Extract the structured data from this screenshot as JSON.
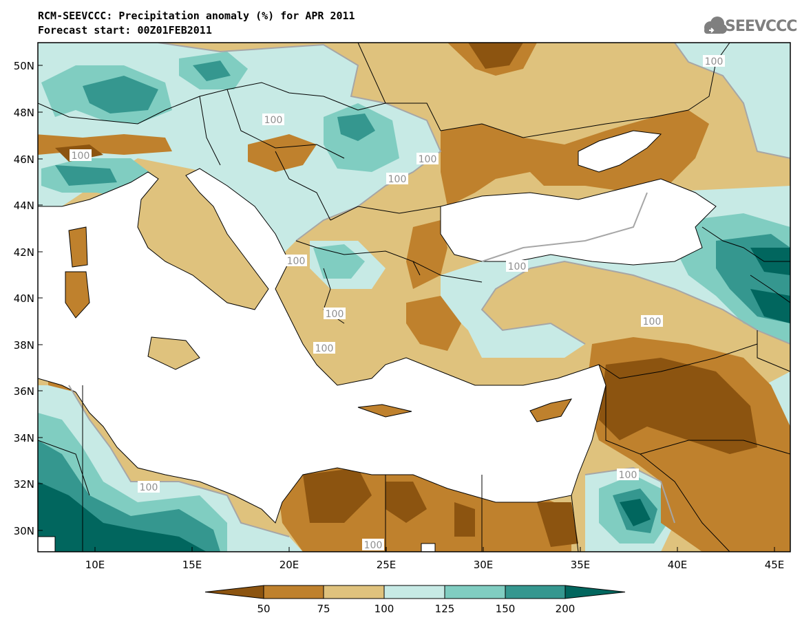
{
  "title_line1": "RCM-SEEVCCC: Precipitation anomaly (%) for APR 2011",
  "title_line2": "Forecast start: 00Z01FEB2011",
  "logo_text": "SEEVCCC",
  "lat_labels": [
    "50N",
    "48N",
    "46N",
    "44N",
    "42N",
    "40N",
    "38N",
    "36N",
    "34N",
    "32N",
    "30N"
  ],
  "lon_labels": [
    "10E",
    "15E",
    "20E",
    "25E",
    "30E",
    "35E",
    "40E",
    "45E"
  ],
  "contour_label": "100",
  "colorbar": {
    "bins": [
      {
        "from": 0,
        "to": 50,
        "color": "#8c5410"
      },
      {
        "from": 50,
        "to": 75,
        "color": "#bf812d"
      },
      {
        "from": 75,
        "to": 100,
        "color": "#dfc27d"
      },
      {
        "from": 100,
        "to": 125,
        "color": "#c7eae5"
      },
      {
        "from": 125,
        "to": 150,
        "color": "#80cdc1"
      },
      {
        "from": 150,
        "to": 200,
        "color": "#35978f"
      },
      {
        "from": 200,
        "to": 999,
        "color": "#01665e"
      }
    ],
    "tick_labels": [
      "50",
      "75",
      "100",
      "125",
      "150",
      "200"
    ]
  },
  "colors": {
    "sea": "#ffffff",
    "contour": "#a6a6a6",
    "border": "#000000"
  }
}
